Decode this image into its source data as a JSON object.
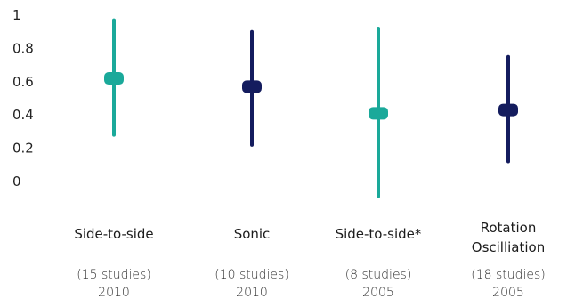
{
  "chart_data": {
    "type": "scatter",
    "title": "",
    "xlabel": "",
    "ylabel": "",
    "ylim": [
      -0.1,
      1
    ],
    "yticks": [
      "1",
      "0.8",
      "0.6",
      "0.4",
      "0.2",
      "0"
    ],
    "ytick_values": [
      1,
      0.8,
      0.6,
      0.4,
      0.2,
      0
    ],
    "grid": false,
    "legend": "none",
    "categories": [
      {
        "label": "Side-to-side",
        "label_lines": [
          "Side-to-side"
        ],
        "studies": "(15 studies)",
        "year": "2010",
        "value": 0.62,
        "low": 0.28,
        "high": 0.97,
        "color": "#1aa99a"
      },
      {
        "label": "Sonic",
        "label_lines": [
          "Sonic"
        ],
        "studies": "(10 studies)",
        "year": "2010",
        "value": 0.57,
        "low": 0.22,
        "high": 0.9,
        "color": "#141c5e"
      },
      {
        "label": "Side-to-side*",
        "label_lines": [
          "Side-to-side*"
        ],
        "studies": "(8 studies)",
        "year": "2005",
        "value": 0.41,
        "low": -0.09,
        "high": 0.92,
        "color": "#1aa99a"
      },
      {
        "label": "Rotation Oscilliation",
        "label_lines": [
          "Rotation",
          "Oscilliation"
        ],
        "studies": "(18 studies)",
        "year": "2005",
        "value": 0.43,
        "low": 0.12,
        "high": 0.75,
        "color": "#141c5e"
      }
    ]
  }
}
